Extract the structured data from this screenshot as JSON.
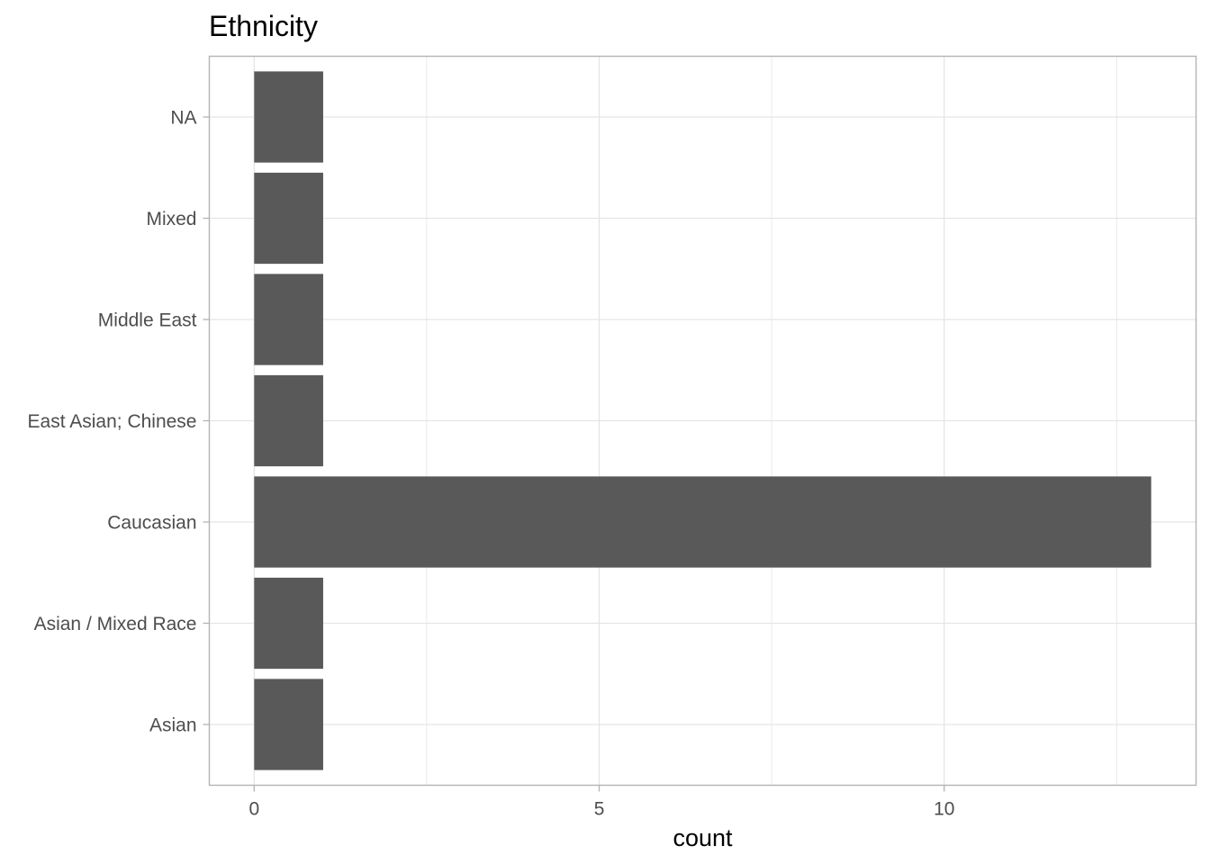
{
  "chart_data": {
    "type": "bar",
    "orientation": "horizontal",
    "title": "Ethnicity",
    "xlabel": "count",
    "ylabel": "",
    "categories": [
      "Asian",
      "Asian / Mixed Race",
      "Caucasian",
      "East Asian; Chinese",
      "Middle East",
      "Mixed",
      "NA"
    ],
    "values": [
      1,
      1,
      13,
      1,
      1,
      1,
      1
    ],
    "xlim": [
      -0.65,
      13.65
    ],
    "x_ticks": [
      0,
      5,
      10
    ],
    "x_tick_labels": [
      "0",
      "5",
      "10"
    ],
    "grid": true,
    "legend": "none",
    "colors": {
      "bar": "#595959",
      "grid": "#e5e5e5",
      "panel_border": "#b3b3b3",
      "tick_label": "#4d4d4d",
      "title": "#000000"
    }
  }
}
